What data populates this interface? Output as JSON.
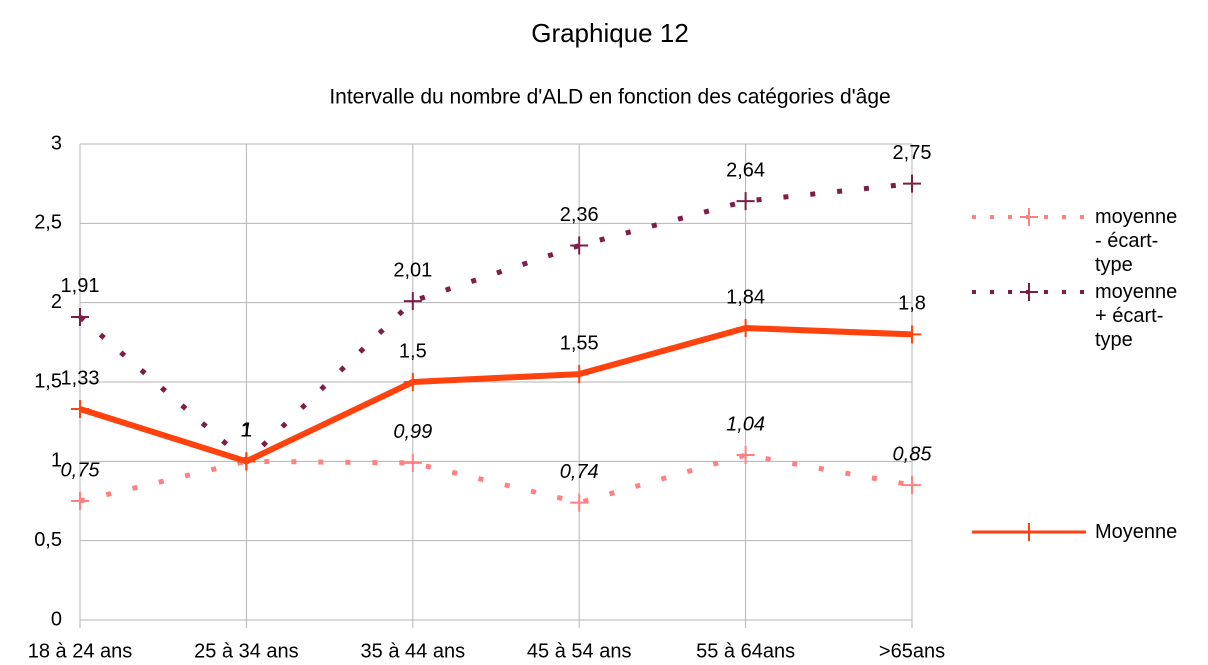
{
  "chart_data": {
    "type": "line",
    "title": "Graphique 12",
    "subtitle": "Intervalle du nombre d'ALD en fonction des catégories d'âge",
    "categories": [
      "18 à 24 ans",
      "25 à 34 ans",
      "35 à 44 ans",
      "45 à 54 ans",
      "55 à 64ans",
      ">65ans"
    ],
    "series": [
      {
        "name": "moyenne - écart-type",
        "color": "#ff8080",
        "dash": "dotted",
        "italic": true,
        "values": [
          0.75,
          1,
          0.99,
          0.74,
          1.04,
          0.85
        ],
        "value_labels": [
          "0,75",
          "1",
          "0,99",
          "0,74",
          "1,04",
          "0,85"
        ]
      },
      {
        "name": "moyenne + écart-type",
        "color": "#7e1e48",
        "dash": "dotted",
        "italic": false,
        "values": [
          1.91,
          1,
          2.01,
          2.36,
          2.64,
          2.75
        ],
        "value_labels": [
          "1,91",
          "1",
          "2,01",
          "2,36",
          "2,64",
          "2,75"
        ]
      },
      {
        "name": "Moyenne",
        "color": "#ff420e",
        "dash": "solid",
        "italic": false,
        "values": [
          1.33,
          1,
          1.5,
          1.55,
          1.84,
          1.8
        ],
        "value_labels": [
          "1,33",
          "1",
          "1,5",
          "1,55",
          "1,84",
          "1,8"
        ]
      }
    ],
    "ylim": [
      0,
      3
    ],
    "yticks": [
      0,
      {
        "value": 0.5,
        "label": "0,5"
      },
      1,
      {
        "value": 1.5,
        "label": "1,5"
      },
      2,
      {
        "value": 2.5,
        "label": "2,5"
      },
      3
    ],
    "grid": true,
    "legend": "right"
  }
}
